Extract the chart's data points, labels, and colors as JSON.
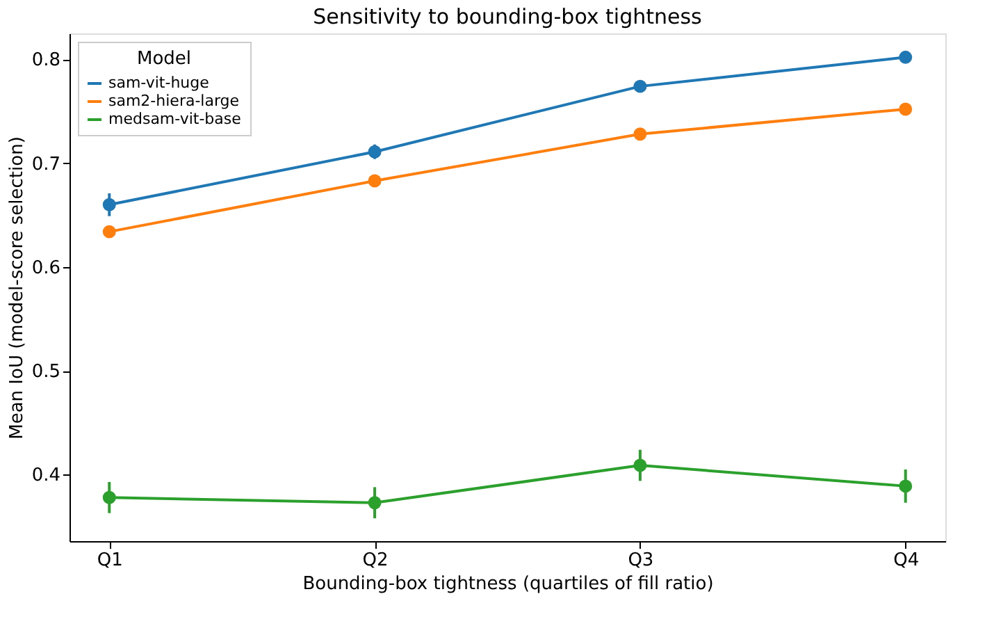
{
  "chart_data": {
    "type": "line",
    "title": "Sensitivity to bounding-box tightness",
    "xlabel": "Bounding-box tightness (quartiles of fill ratio)",
    "ylabel": "Mean IoU (model-score selection)",
    "legend_title": "Model",
    "legend": "top left",
    "marker": "circle",
    "grid": false,
    "categories": [
      "Q1",
      "Q2",
      "Q3",
      "Q4"
    ],
    "ylim": [
      0.336,
      0.825
    ],
    "yticks": [
      0.4,
      0.5,
      0.6,
      0.7,
      0.8
    ],
    "series": [
      {
        "name": "sam-vit-huge",
        "color": "#1f77b4",
        "values": [
          0.66,
          0.711,
          0.774,
          0.802
        ],
        "errors": [
          0.011,
          0.007,
          0.003,
          0.003
        ]
      },
      {
        "name": "sam2-hiera-large",
        "color": "#ff7f0e",
        "values": [
          0.634,
          0.683,
          0.728,
          0.752
        ],
        "errors": [
          0.006,
          0.004,
          0.003,
          0.003
        ]
      },
      {
        "name": "medsam-vit-base",
        "color": "#2ca02c",
        "values": [
          0.378,
          0.373,
          0.409,
          0.389
        ],
        "errors": [
          0.015,
          0.015,
          0.015,
          0.016
        ]
      }
    ]
  }
}
